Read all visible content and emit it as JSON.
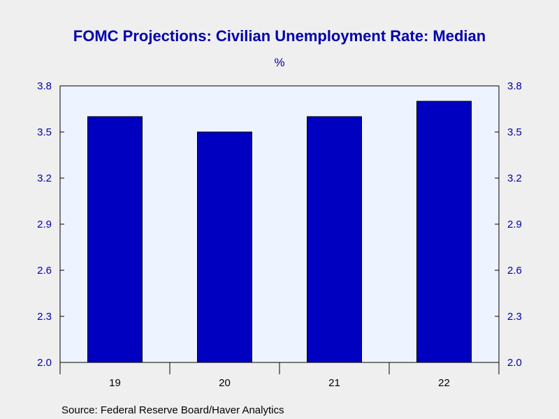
{
  "chart_data": {
    "type": "bar",
    "title": "FOMC Projections: Civilian Unemployment Rate: Median",
    "unit_label": "%",
    "categories": [
      "19",
      "20",
      "21",
      "22"
    ],
    "values": [
      3.6,
      3.5,
      3.6,
      3.7
    ],
    "ylim": [
      2.0,
      3.8
    ],
    "yticks": [
      "2.0",
      "2.3",
      "2.6",
      "2.9",
      "3.2",
      "3.5",
      "3.8"
    ],
    "ytick_values": [
      2.0,
      2.3,
      2.6,
      2.9,
      3.2,
      3.5,
      3.8
    ],
    "dual_y_axis": true,
    "grid": false,
    "legend": "none",
    "source": "Source:  Federal Reserve Board/Haver Analytics",
    "colors": {
      "bar_fill": "#0000c0",
      "bar_stroke": "#000000",
      "plot_background": "#eef4ff",
      "page_background": "#efefef",
      "text_accent": "#0000b0"
    }
  }
}
